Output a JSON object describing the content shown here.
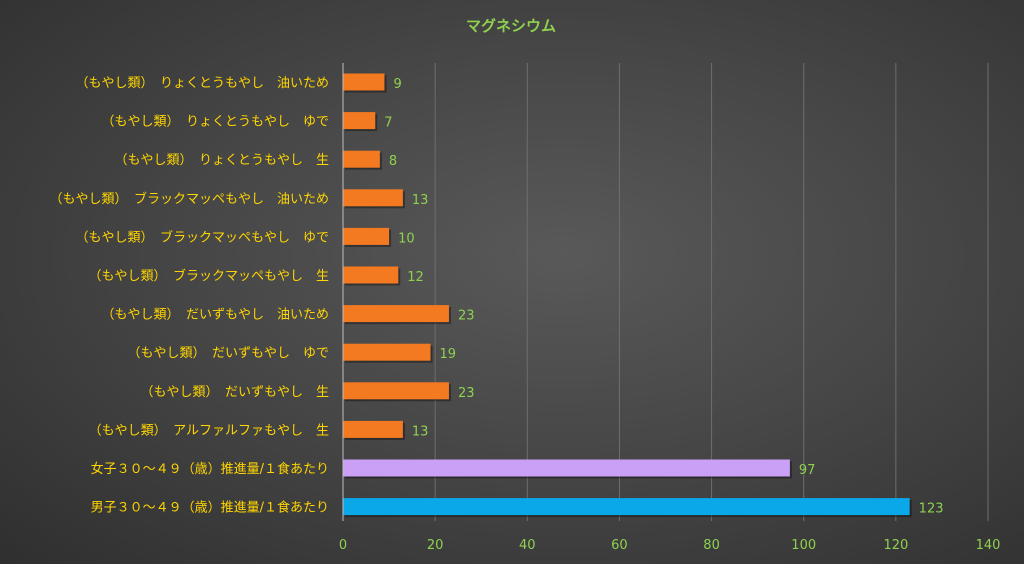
{
  "chart_data": {
    "type": "bar",
    "orientation": "horizontal",
    "title": "マグネシウム",
    "xlabel": "",
    "ylabel": "",
    "xlim": [
      0,
      140
    ],
    "ticks": [
      "0",
      "20",
      "40",
      "60",
      "80",
      "100",
      "120",
      "140"
    ],
    "grid": true,
    "legend": "none",
    "categories": [
      "（もやし類）　りょくとうもやし　油いため",
      "（もやし類）　りょくとうもやし　ゆで",
      "（もやし類）　りょくとうもやし　生",
      "（もやし類）　ブラックマッペもやし　油いため",
      "（もやし類）　ブラックマッペもやし　ゆで",
      "（もやし類）　ブラックマッペもやし　生",
      "（もやし類）　だいずもやし　油いため",
      "（もやし類）　だいずもやし　ゆで",
      "（もやし類）　だいずもやし　生",
      "（もやし類）　アルファルファもやし　生",
      "女子３０～４９（歳）推進量/１食あたり",
      "男子３０～４９（歳）推進量/１食あたり"
    ],
    "values": [
      9,
      7,
      8,
      13,
      10,
      12,
      23,
      19,
      23,
      13,
      97,
      123
    ],
    "colors": [
      "#f47a21",
      "#f47a21",
      "#f47a21",
      "#f47a21",
      "#f47a21",
      "#f47a21",
      "#f47a21",
      "#f47a21",
      "#f47a21",
      "#f47a21",
      "#c9a0f5",
      "#0aa8e8"
    ]
  }
}
